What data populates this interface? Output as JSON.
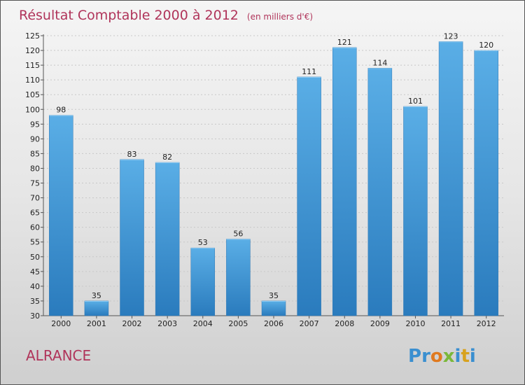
{
  "chart_data": {
    "type": "bar",
    "title": "Résultat Comptable 2000 à 2012",
    "subtitle": "(en milliers d'€)",
    "categories": [
      "2000",
      "2001",
      "2002",
      "2003",
      "2004",
      "2005",
      "2006",
      "2007",
      "2008",
      "2009",
      "2010",
      "2011",
      "2012"
    ],
    "values": [
      98,
      35,
      83,
      82,
      53,
      56,
      35,
      111,
      121,
      114,
      101,
      123,
      120
    ],
    "ylim": [
      30,
      125
    ],
    "yticks": [
      30,
      35,
      40,
      45,
      50,
      55,
      60,
      65,
      70,
      75,
      80,
      85,
      90,
      95,
      100,
      105,
      110,
      115,
      120,
      125
    ],
    "grid": true,
    "xlabel": "",
    "ylabel": "",
    "bar_color_top": "#5aaee6",
    "bar_color_bottom": "#2a7bbd"
  },
  "footer": {
    "commune": "ALRANCE",
    "logo_letters": [
      "P",
      "r",
      "o",
      "x",
      "i",
      "t",
      "i"
    ],
    "logo_colors": [
      "#3a8fd0",
      "#3a8fd0",
      "#e07a1f",
      "#7ab83a",
      "#3a8fd0",
      "#d8a21e",
      "#3a8fd0"
    ]
  }
}
